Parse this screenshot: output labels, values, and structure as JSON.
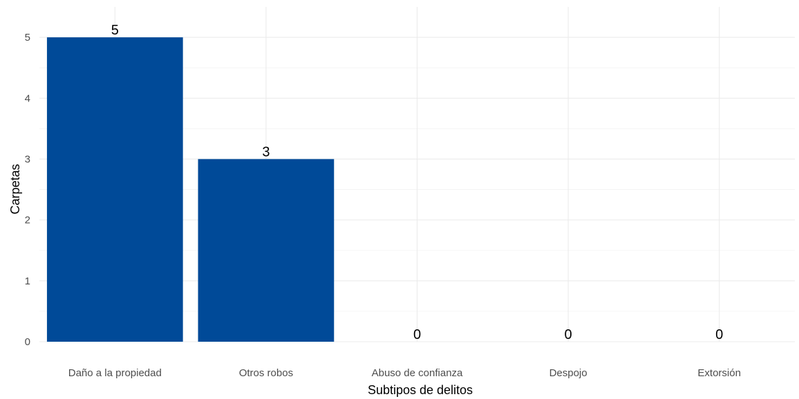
{
  "chart_data": {
    "type": "bar",
    "title": "",
    "xlabel": "Subtipos de delitos",
    "ylabel": "Carpetas",
    "categories": [
      "Daño a la propiedad",
      "Otros robos",
      "Abuso de confianza",
      "Despojo",
      "Extorsión"
    ],
    "values": [
      5,
      3,
      0,
      0,
      0
    ],
    "data_labels": [
      "5",
      "3",
      "0",
      "0",
      "0"
    ],
    "ylim": [
      0,
      5.5
    ],
    "yticks": [
      0,
      1,
      2,
      3,
      4,
      5
    ],
    "bar_color": "#004a98",
    "grid": true,
    "legend": "none"
  }
}
